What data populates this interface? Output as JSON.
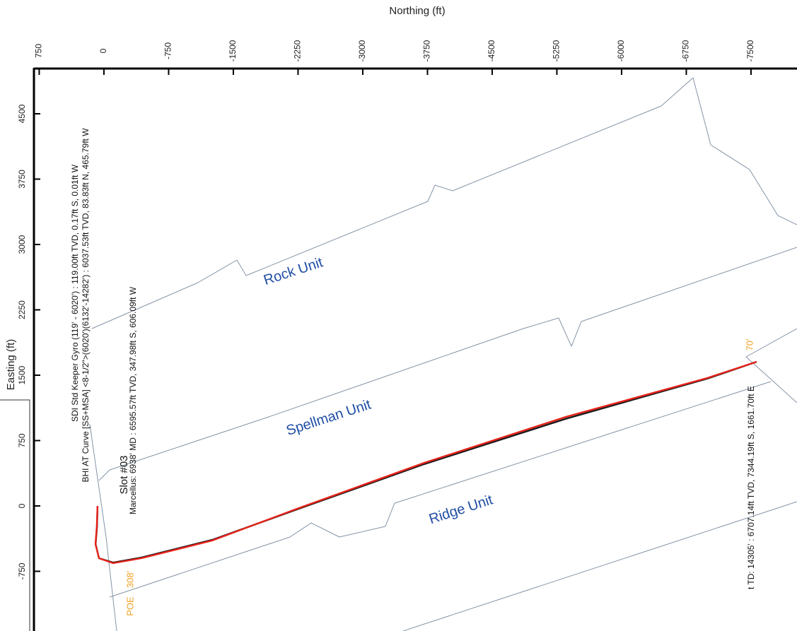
{
  "chart_data": {
    "type": "line",
    "x_label": "Northing (ft)",
    "y_label": "Easting (ft)",
    "xlim": [
      811,
      -8033
    ],
    "ylim": [
      -1435,
      5019
    ],
    "xticks": [
      750,
      0,
      -750,
      -1500,
      -2250,
      -3000,
      -3750,
      -4500,
      -5250,
      -6000,
      -6750,
      -7500
    ],
    "yticks": [
      4500,
      3750,
      3000,
      2250,
      1500,
      750,
      0,
      -750
    ],
    "series": [
      {
        "name": "Rock Unit",
        "color": "#8494a6",
        "x": [
          139,
          -1090,
          -1541,
          -1648,
          -3754,
          -3836,
          -4041,
          -6459,
          -6828,
          -7033,
          -7484,
          -7812,
          -8033
        ],
        "y": [
          2035,
          2562,
          2822,
          2643,
          3495,
          3681,
          3616,
          4589,
          4913,
          4143,
          3859,
          3332,
          3227
        ]
      },
      {
        "name": "Spellman Unit",
        "color": "#8494a6",
        "x": [
          57,
          -66,
          -1910,
          -4861,
          -5271,
          -5418,
          -5533,
          -8033
        ],
        "y": [
          292,
          413,
          1022,
          2035,
          2157,
          1832,
          2116,
          2968
        ]
      },
      {
        "name": "Ridge Unit",
        "color": "#8494a6",
        "x": [
          -66,
          -2156,
          -2402,
          -2730,
          -3262,
          -3369,
          -7730
        ],
        "y": [
          -1046,
          -357,
          -195,
          -357,
          -235,
          32,
          1427
        ]
      },
      {
        "color": "#8494a6",
        "x": [
          -3467,
          -8033
        ],
        "y": [
          -1435,
          49
        ]
      },
      {
        "color": "#8494a6",
        "x": [
          -8033,
          -7443,
          -8033
        ],
        "y": [
          2035,
          1711,
          1184
        ]
      },
      {
        "color": "#8494a6",
        "x": [
          164,
          -25,
          -148
        ],
        "y": [
          941,
          -357,
          -1435
        ]
      },
      {
        "color": "#1a1a1a",
        "x": [
          74,
          80,
          96,
          57,
          -107,
          -434,
          -1254,
          -2238,
          -3713,
          -5353,
          -6992,
          -7566
        ],
        "y": [
          0,
          -235,
          -438,
          -600,
          -650,
          -592,
          -390,
          -40,
          480,
          1000,
          1460,
          1654
        ]
      },
      {
        "color": "#e8231a",
        "x": [
          74,
          82,
          98,
          57,
          -107,
          -434,
          -1254,
          -2238,
          -3713,
          -5353,
          -6992,
          -7566
        ],
        "y": [
          0,
          -235,
          -438,
          -600,
          -657,
          -600,
          -397,
          -32,
          495,
          1022,
          1468,
          1654
        ]
      }
    ],
    "annotations": [
      {
        "text": "SDI Std Keeper Gyro (119' - 6020') : 119.00ft TVD, 0.17ft S, 0.01ft W",
        "color": "#111111"
      },
      {
        "text": "BHI AT Curve [SS+MSA] <8-1/2\">(6020')(6132'-14282') : 6037.53ft TVD, 83.83ft N, 465.79ft W",
        "color": "#111111"
      },
      {
        "text": "Slot #03",
        "color": "#111111"
      },
      {
        "text": "Marcellus: 6938' MD : 6595.57ft TVD, 347.98ft S, 606.09ft W",
        "color": "#111111"
      },
      {
        "text": "POE",
        "color": "#f0a020"
      },
      {
        "text": "308'",
        "color": "#f0a020"
      },
      {
        "text": "t TD: 14305' : 6707.14ft TVD, 7344.19ft S, 1661.70ft E",
        "color": "#111111"
      },
      {
        "text": "70'",
        "color": "#f0a020"
      }
    ],
    "label_color": "#1f4ea3"
  }
}
